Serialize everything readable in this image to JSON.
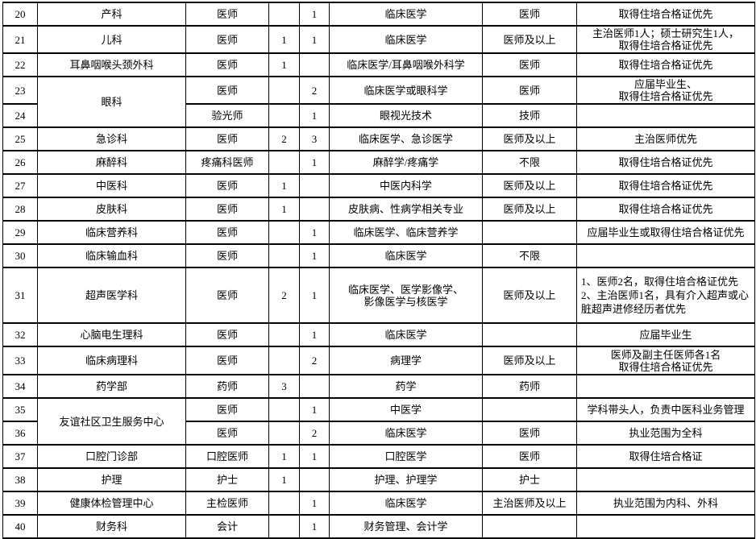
{
  "table": {
    "rows": [
      {
        "num": "20",
        "dept": "产科",
        "post": "医师",
        "n1": "",
        "n2": "1",
        "major": "临床医学",
        "title": "医师",
        "remark": "取得住培合格证优先"
      },
      {
        "num": "21",
        "dept": "儿科",
        "post": "医师",
        "n1": "1",
        "n2": "1",
        "major": "临床医学",
        "title": "医师及以上",
        "remark": "主治医师1人；硕士研究生1人，\n取得住培合格证优先"
      },
      {
        "num": "22",
        "dept": "耳鼻咽喉头颈外科",
        "post": "医师",
        "n1": "1",
        "n2": "",
        "major": "临床医学/耳鼻咽喉外科学",
        "title": "医师",
        "remark": "取得住培合格证优先"
      },
      {
        "num": "23",
        "dept": "眼科",
        "dept_rowspan": 2,
        "post": "医师",
        "n1": "",
        "n2": "2",
        "major": "临床医学或眼科学",
        "title": "医师",
        "remark": "应届毕业生、\n取得住培合格证优先"
      },
      {
        "num": "24",
        "dept_merged": true,
        "post": "验光师",
        "n1": "",
        "n2": "1",
        "major": "眼视光技术",
        "title": "技师",
        "remark": ""
      },
      {
        "num": "25",
        "dept": "急诊科",
        "post": "医师",
        "n1": "2",
        "n2": "3",
        "major": "临床医学、急诊医学",
        "title": "医师及以上",
        "remark": "主治医师优先"
      },
      {
        "num": "26",
        "dept": "麻醉科",
        "post": "疼痛科医师",
        "n1": "",
        "n2": "1",
        "major": "麻醉学/疼痛学",
        "title": "不限",
        "remark": "取得住培合格证优先"
      },
      {
        "num": "27",
        "dept": "中医科",
        "post": "医师",
        "n1": "1",
        "n2": "",
        "major": "中医内科学",
        "title": "医师及以上",
        "remark": "取得住培合格证优先"
      },
      {
        "num": "28",
        "dept": "皮肤科",
        "post": "医师",
        "n1": "1",
        "n2": "",
        "major": "皮肤病、性病学相关专业",
        "title": "医师及以上",
        "remark": "取得住培合格证优先"
      },
      {
        "num": "29",
        "dept": "临床营养科",
        "post": "医师",
        "n1": "",
        "n2": "1",
        "major": "临床医学、临床营养学",
        "title": "",
        "remark": "应届毕业生或取得住培合格证优先"
      },
      {
        "num": "30",
        "dept": "临床输血科",
        "post": "医师",
        "n1": "",
        "n2": "1",
        "major": "临床医学",
        "title": "不限",
        "remark": ""
      },
      {
        "num": "31",
        "dept": "超声医学科",
        "post": "医师",
        "n1": "2",
        "n2": "1",
        "major": "临床医学、医学影像学、\n影像医学与核医学",
        "title": "医师及以上",
        "remark": "1、医师2名，取得住培合格证优先\n2、主治医师1名，具有介入超声或心脏超声进修经历者优先"
      },
      {
        "num": "32",
        "dept": "心脑电生理科",
        "post": "医师",
        "n1": "",
        "n2": "1",
        "major": "临床医学",
        "title": "",
        "remark": "应届毕业生"
      },
      {
        "num": "33",
        "dept": "临床病理科",
        "post": "医师",
        "n1": "",
        "n2": "2",
        "major": "病理学",
        "title": "医师及以上",
        "remark": "医师及副主任医师各1名\n取得住培合格证优先"
      },
      {
        "num": "34",
        "dept": "药学部",
        "post": "药师",
        "n1": "3",
        "n2": "",
        "major": "药学",
        "title": "药师",
        "remark": ""
      },
      {
        "num": "35",
        "dept": "友谊社区卫生服务中心",
        "dept_rowspan": 2,
        "post": "医师",
        "n1": "",
        "n2": "1",
        "major": "中医学",
        "title": "",
        "remark": "学科带头人，负责中医科业务管理"
      },
      {
        "num": "36",
        "dept_merged": true,
        "post": "医师",
        "n1": "",
        "n2": "2",
        "major": "临床医学",
        "title": "医师",
        "remark": "执业范围为全科"
      },
      {
        "num": "37",
        "dept": "口腔门诊部",
        "post": "口腔医师",
        "n1": "1",
        "n2": "1",
        "major": "口腔医学",
        "title": "医师",
        "remark": "取得住培合格证"
      },
      {
        "num": "38",
        "dept": "护理",
        "post": "护士",
        "n1": "1",
        "n2": "",
        "major": "护理、护理学",
        "title": "护士",
        "remark": ""
      },
      {
        "num": "39",
        "dept": "健康体检管理中心",
        "post": "主检医师",
        "n1": "",
        "n2": "1",
        "major": "临床医学",
        "title": "主治医师及以上",
        "remark": "执业范围为内科、外科"
      },
      {
        "num": "40",
        "dept": "财务科",
        "post": "会计",
        "n1": "",
        "n2": "1",
        "major": "财务管理、会计学",
        "title": "",
        "remark": ""
      }
    ]
  }
}
